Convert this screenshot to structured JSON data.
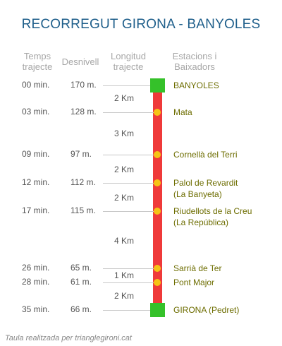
{
  "title": "RECORREGUT GIRONA - BANYOLES",
  "headers": {
    "temps": "Temps trajecte",
    "desnivell": "Desnivell",
    "longitud": "Longitud trajecte",
    "estacions": "Estacions i Baixadors"
  },
  "stops": [
    {
      "time": "00 min.",
      "elev": "170 m.",
      "name": "BANYOLES",
      "sub": "",
      "marker": "terminal"
    },
    {
      "time": "03 min.",
      "elev": "128 m.",
      "name": "Mata",
      "sub": "",
      "marker": "stop"
    },
    {
      "time": "09 min.",
      "elev": "97 m.",
      "name": "Cornellà del Terri",
      "sub": "",
      "marker": "stop"
    },
    {
      "time": "12 min.",
      "elev": "112 m.",
      "name": "Palol de Revardit",
      "sub": "(La Banyeta)",
      "marker": "stop"
    },
    {
      "time": "17 min.",
      "elev": "115 m.",
      "name": "Riudellots de la Creu",
      "sub": "(La República)",
      "marker": "stop"
    },
    {
      "time": "26 min.",
      "elev": "65 m.",
      "name": "Sarrià de Ter",
      "sub": "",
      "marker": "stop"
    },
    {
      "time": "28 min.",
      "elev": "61 m.",
      "name": "Pont Major",
      "sub": "",
      "marker": "stop"
    },
    {
      "time": "35 min.",
      "elev": "66 m.",
      "name": "GIRONA (Pedret)",
      "sub": "",
      "marker": "terminal"
    }
  ],
  "segments": [
    "2 Km",
    "3 Km",
    "2 Km",
    "2 Km",
    "4 Km",
    "1 Km",
    "2 Km"
  ],
  "credit": "Taula realitzada per trianglegironi.cat",
  "colors": {
    "title": "#1f5f8b",
    "rail": "#ef3a3a",
    "terminal": "#35c12a",
    "stop": "#f5c315",
    "station_text": "#6d6d00"
  }
}
